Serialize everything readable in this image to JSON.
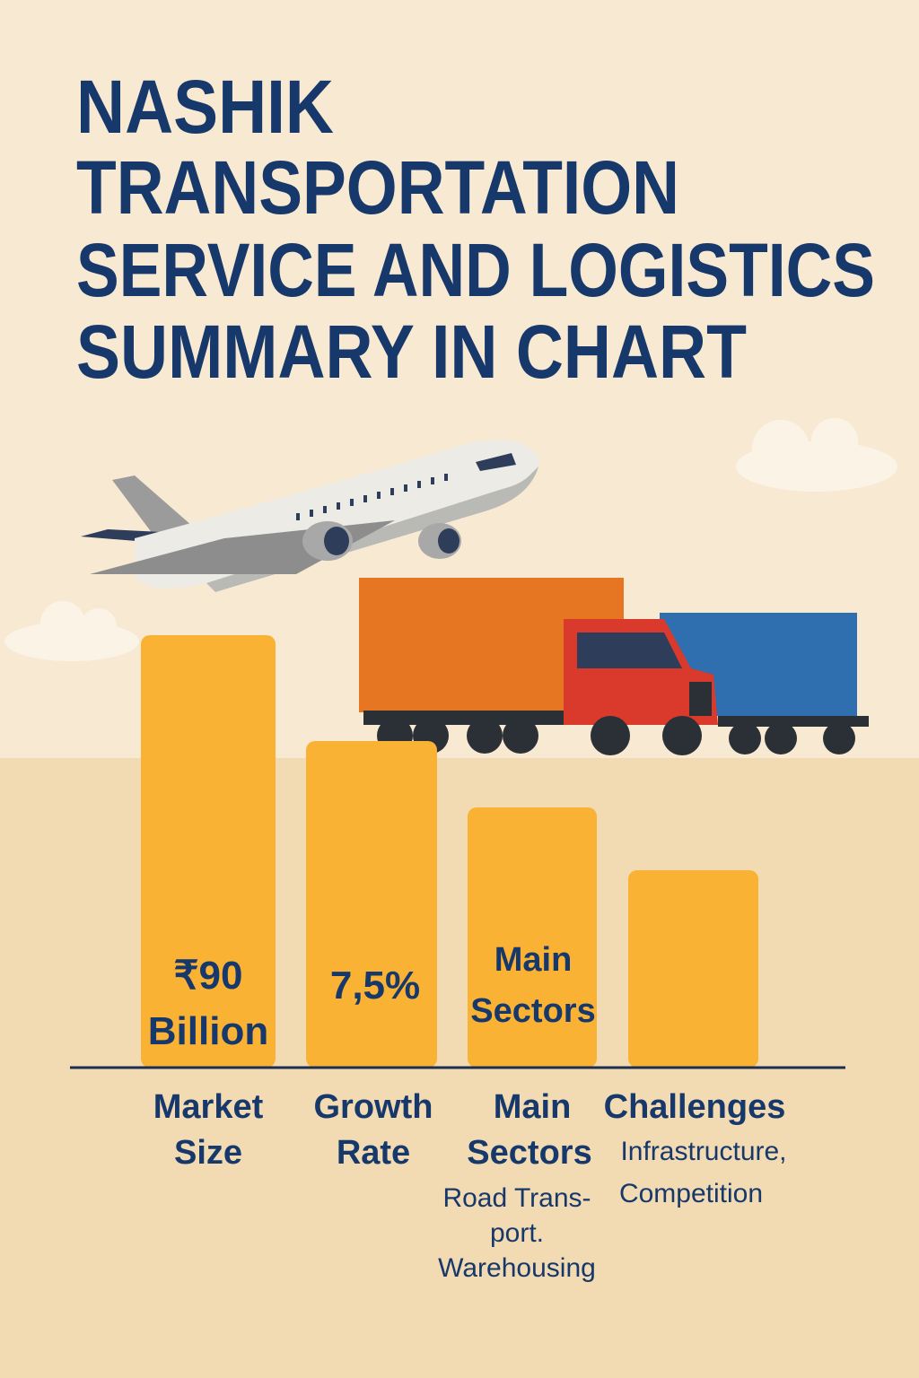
{
  "title": {
    "lines": [
      "NASHIK",
      "TRANSPORTATION",
      "SERVICE AND LOGISTICS",
      "SUMMARY IN CHART"
    ]
  },
  "bars": [
    {
      "value_label": [
        "₹90",
        "Billion"
      ],
      "category": [
        "Market",
        "Size"
      ]
    },
    {
      "value_label": [
        "7,5%"
      ],
      "category": [
        "Growth",
        "Rate"
      ]
    },
    {
      "value_label": [
        "Main",
        "Sectors"
      ],
      "category": [
        "Main",
        "Sectors"
      ],
      "details": [
        "Road Trans-",
        "port.",
        "Warehousing"
      ]
    },
    {
      "category": [
        "Challenges"
      ],
      "details": [
        "Infrastructure,",
        "Competition"
      ]
    }
  ]
}
